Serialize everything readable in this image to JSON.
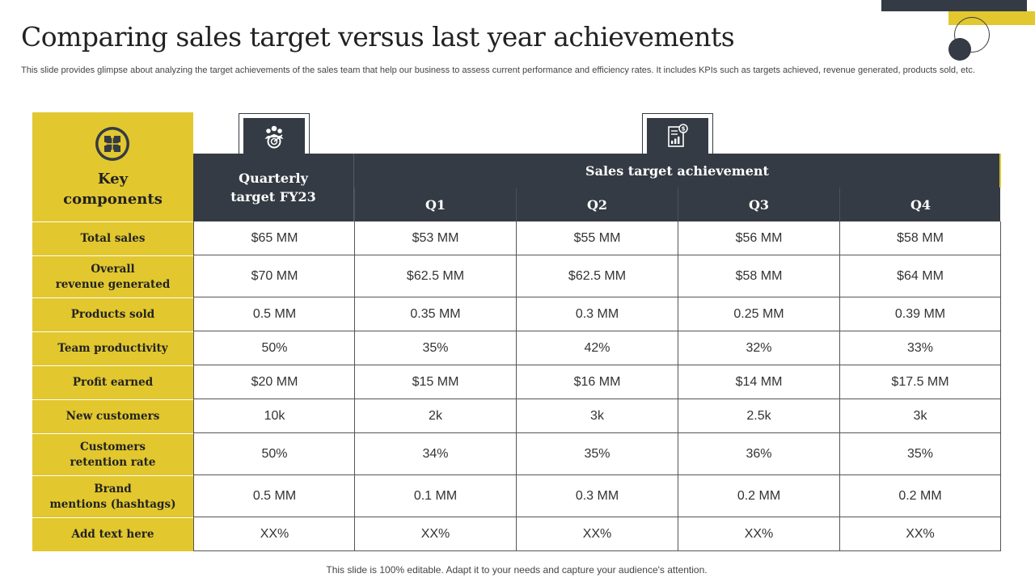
{
  "title": "Comparing sales target versus last year achievements",
  "subtitle": "This slide provides glimpse about analyzing the target achievements of the sales team that help our business to assess current performance and efficiency rates. It includes KPIs such as targets achieved, revenue generated, products sold, etc.",
  "table": {
    "key_header_line1": "Key",
    "key_header_line2": "components",
    "quarterly_header_line1": "Quarterly",
    "quarterly_header_line2": "target FY23",
    "group_header": "Sales target achievement",
    "quarters": [
      "Q1",
      "Q2",
      "Q3",
      "Q4"
    ],
    "rows": [
      {
        "label": [
          "Total sales"
        ],
        "values": [
          "$65 MM",
          "$53 MM",
          "$55 MM",
          "$56 MM",
          "$58 MM"
        ]
      },
      {
        "label": [
          "Overall",
          "revenue generated"
        ],
        "values": [
          "$70 MM",
          "$62.5 MM",
          "$62.5 MM",
          "$58 MM",
          "$64 MM"
        ]
      },
      {
        "label": [
          "Products sold"
        ],
        "values": [
          "0.5 MM",
          "0.35 MM",
          "0.3 MM",
          "0.25 MM",
          "0.39 MM"
        ]
      },
      {
        "label": [
          "Team productivity"
        ],
        "values": [
          "50%",
          "35%",
          "42%",
          "32%",
          "33%"
        ]
      },
      {
        "label": [
          "Profit earned"
        ],
        "values": [
          "$20 MM",
          "$15 MM",
          "$16 MM",
          "$14 MM",
          "$17.5 MM"
        ]
      },
      {
        "label": [
          "New customers"
        ],
        "values": [
          "10k",
          "2k",
          "3k",
          "2.5k",
          "3k"
        ]
      },
      {
        "label": [
          "Customers",
          "retention rate"
        ],
        "values": [
          "50%",
          "34%",
          "35%",
          "36%",
          "35%"
        ]
      },
      {
        "label": [
          "Brand",
          "mentions (hashtags)"
        ],
        "values": [
          "0.5 MM",
          "0.1 MM",
          "0.3 MM",
          "0.2 MM",
          "0.2 MM"
        ]
      },
      {
        "label": [
          "Add text here"
        ],
        "values": [
          "XX%",
          "XX%",
          "XX%",
          "XX%",
          "XX%"
        ]
      }
    ]
  },
  "icons": {
    "key_components": "puzzle-icon",
    "quarterly_target": "team-target-icon",
    "sales_achievement": "sales-report-icon"
  },
  "colors": {
    "accent_yellow": "#e2c72f",
    "dark_slate": "#343b44"
  },
  "footer": "This slide is 100% editable. Adapt it to your needs and capture your audience's attention."
}
